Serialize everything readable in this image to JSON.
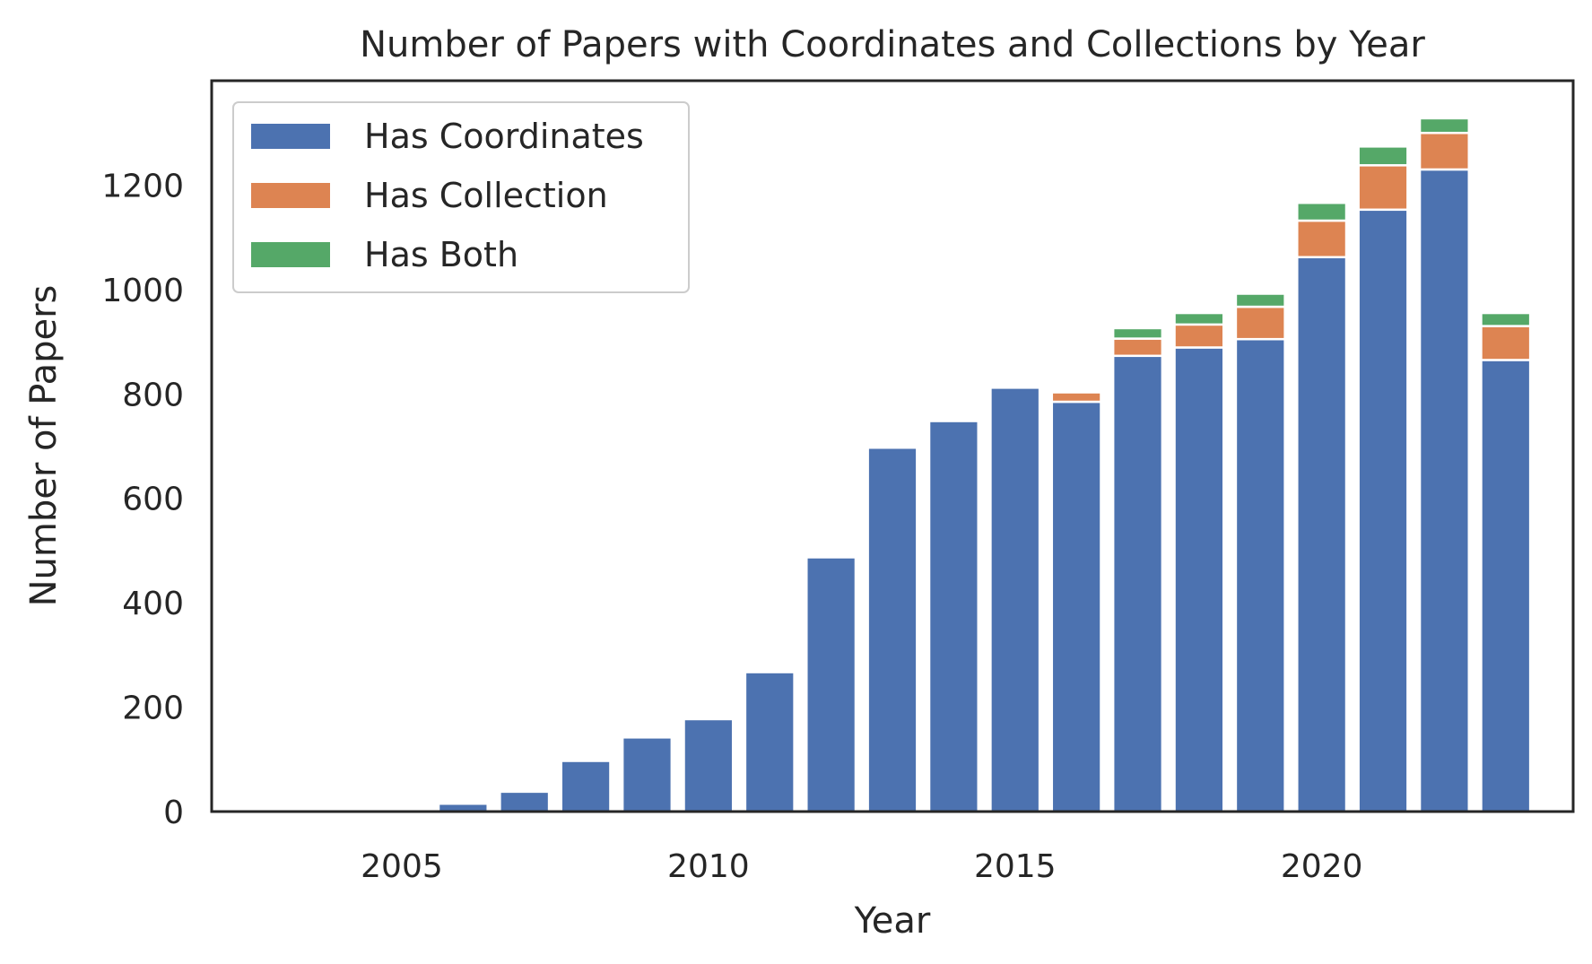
{
  "chart_data": {
    "type": "bar",
    "stacked": true,
    "title": "Number of Papers with Coordinates and Collections by Year",
    "xlabel": "Year",
    "ylabel": "Number of Papers",
    "xlim": [
      2001.9,
      2024.1
    ],
    "ylim": [
      0,
      1400
    ],
    "xticks": [
      2005,
      2010,
      2015,
      2020
    ],
    "yticks": [
      0,
      200,
      400,
      600,
      800,
      1000,
      1200
    ],
    "grid": false,
    "legend": {
      "position": "top-left"
    },
    "x": [
      2003,
      2004,
      2005,
      2006,
      2007,
      2008,
      2009,
      2010,
      2011,
      2012,
      2013,
      2014,
      2015,
      2016,
      2017,
      2018,
      2019,
      2020,
      2021,
      2022,
      2023
    ],
    "series": [
      {
        "name": "Has Coordinates",
        "color": "#4c72b0",
        "values": [
          1,
          1,
          2,
          15,
          38,
          97,
          142,
          177,
          267,
          487,
          697,
          748,
          812,
          785,
          873,
          889,
          905,
          1062,
          1153,
          1230,
          865
        ]
      },
      {
        "name": "Has Collection",
        "color": "#dd8452",
        "values": [
          0,
          0,
          0,
          0,
          0,
          0,
          0,
          0,
          0,
          0,
          0,
          0,
          4,
          18,
          33,
          44,
          62,
          70,
          85,
          70,
          65
        ]
      },
      {
        "name": "Has Both",
        "color": "#55a868",
        "values": [
          0,
          0,
          0,
          0,
          0,
          0,
          0,
          0,
          0,
          0,
          0,
          0,
          0,
          0,
          20,
          22,
          25,
          34,
          36,
          28,
          25
        ]
      }
    ]
  }
}
